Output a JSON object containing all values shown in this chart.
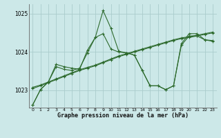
{
  "title": "Graphe pression niveau de la mer (hPa)",
  "bg_color": "#cce8e8",
  "grid_color": "#aacccc",
  "line_color": "#2d6a2d",
  "xlim": [
    -0.5,
    23.5
  ],
  "ylim": [
    1022.55,
    1025.25
  ],
  "yticks": [
    1023,
    1024,
    1025
  ],
  "xticks": [
    0,
    1,
    2,
    3,
    4,
    5,
    6,
    7,
    8,
    9,
    10,
    11,
    12,
    13,
    14,
    15,
    16,
    17,
    18,
    19,
    20,
    21,
    22,
    23
  ],
  "series": [
    [
      1022.62,
      1023.02,
      1023.22,
      1023.68,
      1023.62,
      1023.58,
      1023.55,
      1024.05,
      1024.38,
      1025.08,
      1024.62,
      1024.02,
      1023.98,
      1023.92,
      1023.52,
      1023.12,
      1023.12,
      1023.02,
      1023.12,
      1024.22,
      1024.48,
      1024.48,
      1024.32,
      1024.3
    ],
    [
      1022.62,
      1023.02,
      1023.22,
      1023.62,
      1023.55,
      1023.52,
      1023.58,
      1023.98,
      1024.38,
      1024.48,
      1024.08,
      1024.0,
      1023.98,
      1023.92,
      1023.52,
      1023.12,
      1023.12,
      1023.02,
      1023.12,
      1024.18,
      1024.42,
      1024.42,
      1024.32,
      1024.28
    ],
    [
      1023.05,
      1023.12,
      1023.2,
      1023.28,
      1023.36,
      1023.44,
      1023.52,
      1023.58,
      1023.64,
      1023.72,
      1023.8,
      1023.88,
      1023.94,
      1024.0,
      1024.06,
      1024.12,
      1024.18,
      1024.24,
      1024.3,
      1024.35,
      1024.38,
      1024.42,
      1024.46,
      1024.5
    ],
    [
      1023.08,
      1023.14,
      1023.22,
      1023.3,
      1023.38,
      1023.46,
      1023.54,
      1023.6,
      1023.66,
      1023.74,
      1023.82,
      1023.9,
      1023.96,
      1024.02,
      1024.08,
      1024.14,
      1024.2,
      1024.26,
      1024.32,
      1024.37,
      1024.4,
      1024.44,
      1024.48,
      1024.52
    ]
  ]
}
